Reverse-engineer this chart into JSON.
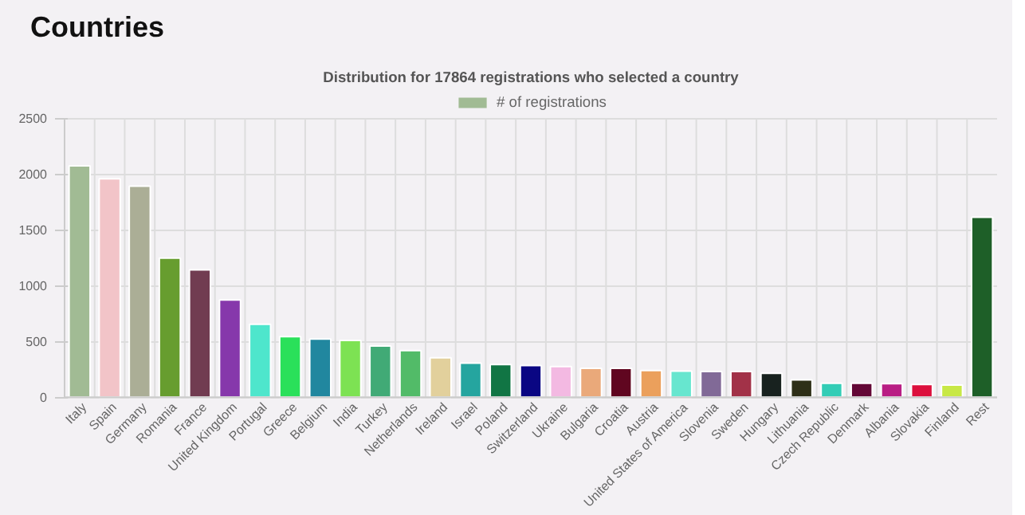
{
  "chart_data": {
    "type": "bar",
    "title": "Countries",
    "subtitle": "Distribution for 17864 registrations who selected a country",
    "categories": [
      "Italy",
      "Spain",
      "Germany",
      "Romania",
      "France",
      "United Kingdom",
      "Portugal",
      "Greece",
      "Belgium",
      "India",
      "Turkey",
      "Netherlands",
      "Ireland",
      "Israel",
      "Poland",
      "Switzerland",
      "Ukraine",
      "Bulgaria",
      "Croatia",
      "Austria",
      "United States of America",
      "Slovenia",
      "Sweden",
      "Hungary",
      "Lithuania",
      "Czech Republic",
      "Denmark",
      "Albania",
      "Slovakia",
      "Finland",
      "Rest"
    ],
    "series": [
      {
        "name": "# of registrations",
        "color": "#a1bb94",
        "colors": [
          "#a1bb94",
          "#f2c4c8",
          "#abae96",
          "#679d2f",
          "#713c51",
          "#8638ab",
          "#4ee6cc",
          "#2ae05a",
          "#21879f",
          "#7de253",
          "#41aa76",
          "#52bb68",
          "#e2d09c",
          "#25a59f",
          "#117544",
          "#0a0683",
          "#f3b9e2",
          "#eaa97a",
          "#600620",
          "#eba05c",
          "#67e6cf",
          "#816a97",
          "#a23248",
          "#18221f",
          "#2e2f17",
          "#33cdb6",
          "#630736",
          "#b91e84",
          "#dc103d",
          "#c8e846",
          "#1e5f28"
        ],
        "values": [
          2075,
          1958,
          1892,
          1246,
          1142,
          871,
          654,
          542,
          521,
          508,
          458,
          417,
          354,
          304,
          292,
          283,
          275,
          258,
          258,
          238,
          233,
          229,
          229,
          213,
          154,
          125,
          125,
          121,
          113,
          108,
          1613
        ]
      }
    ],
    "ylim": [
      0,
      2500
    ],
    "yticks": [
      0,
      500,
      1000,
      1500,
      2000,
      2500
    ],
    "grid": true,
    "legend": "top"
  }
}
